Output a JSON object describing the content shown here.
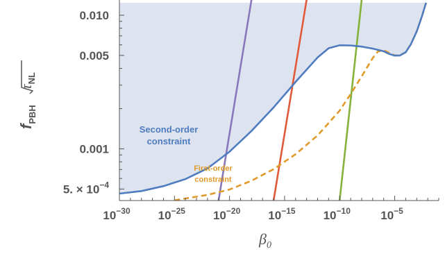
{
  "chart_data": {
    "type": "line",
    "xlabel": "β",
    "xlabel_sub": "0",
    "ylabel_main": "f",
    "ylabel_sub": "PBH",
    "ylabel_sqrt": "τ",
    "ylabel_sqrt_sub": "NL",
    "x_scale": "log",
    "y_scale": "log",
    "xlim": [
      1e-30,
      0.1
    ],
    "ylim": [
      0.00041,
      0.013
    ],
    "x_ticks": [
      {
        "value": 1e-30,
        "base": "10",
        "exp": "−30"
      },
      {
        "value": 1e-25,
        "base": "10",
        "exp": "−25"
      },
      {
        "value": 1e-20,
        "base": "10",
        "exp": "−20"
      },
      {
        "value": 1e-15,
        "base": "10",
        "exp": "−15"
      },
      {
        "value": 1e-10,
        "base": "10",
        "exp": "−10"
      },
      {
        "value": 1e-05,
        "base": "10",
        "exp": "−5"
      }
    ],
    "y_ticks": [
      {
        "value": 0.0005,
        "label": "5. × 10",
        "exp": "−4"
      },
      {
        "value": 0.001,
        "label": "0.001",
        "exp": ""
      },
      {
        "value": 0.005,
        "label": "0.005",
        "exp": ""
      },
      {
        "value": 0.01,
        "label": "0.010",
        "exp": ""
      }
    ],
    "excluded_region": {
      "upper": 0.0124,
      "color": "#dde4f0"
    },
    "series": [
      {
        "name": "Second-order constraint",
        "color": "#4f7cbf",
        "style": "solid",
        "points": [
          [
            1e-30,
            0.000462
          ],
          [
            1e-28,
            0.000483
          ],
          [
            1e-26,
            0.000526
          ],
          [
            1e-24,
            0.000594
          ],
          [
            1e-22,
            0.000714
          ],
          [
            1e-20,
            0.000952
          ],
          [
            1e-18,
            0.00136
          ],
          [
            1e-16,
            0.00204
          ],
          [
            1e-14,
            0.00317
          ],
          [
            1e-12,
            0.00483
          ],
          [
            1e-11,
            0.00566
          ],
          [
            1e-10,
            0.00596
          ],
          [
            1e-09,
            0.00594
          ],
          [
            1e-08,
            0.00582
          ],
          [
            1e-07,
            0.00563
          ],
          [
            1e-06,
            0.00537
          ],
          [
            3e-06,
            0.00514
          ],
          [
            1e-05,
            0.00499
          ],
          [
            3e-05,
            0.005
          ],
          [
            0.0001,
            0.00528
          ],
          [
            0.0003,
            0.00608
          ],
          [
            0.001,
            0.00757
          ],
          [
            0.003,
            0.00982
          ],
          [
            0.007,
            0.0124
          ]
        ]
      },
      {
        "name": "First-order constraint",
        "color": "#e09a2a",
        "style": "dashed",
        "points": [
          [
            1e-25,
            0.000412
          ],
          [
            1e-22,
            0.000452
          ],
          [
            1e-20,
            0.000496
          ],
          [
            1e-18,
            0.000577
          ],
          [
            1e-16,
            0.000704
          ],
          [
            1e-14,
            0.000911
          ],
          [
            1e-12,
            0.00126
          ],
          [
            1e-10,
            0.00193
          ],
          [
            1e-09,
            0.00257
          ],
          [
            1e-08,
            0.00349
          ],
          [
            1e-07,
            0.00477
          ],
          [
            3e-07,
            0.00536
          ],
          [
            1e-06,
            0.00546
          ],
          [
            3e-06,
            0.00524
          ],
          [
            1e-05,
            0.005
          ],
          [
            3e-05,
            0.00501
          ],
          [
            0.0001,
            0.00528
          ],
          [
            0.0003,
            0.00608
          ],
          [
            0.001,
            0.00757
          ],
          [
            0.003,
            0.00982
          ],
          [
            0.007,
            0.0124
          ]
        ]
      },
      {
        "name": "",
        "color": "#8877bb",
        "style": "solid",
        "points": [
          [
            1e-21,
            0.00041
          ],
          [
            1e-18,
            0.0131
          ]
        ]
      },
      {
        "name": "",
        "color": "#e05a3a",
        "style": "solid",
        "points": [
          [
            1e-16,
            0.00041
          ],
          [
            1e-13,
            0.0131
          ]
        ]
      },
      {
        "name": "",
        "color": "#86b23c",
        "style": "solid",
        "points": [
          [
            1e-10,
            0.00041
          ],
          [
            1e-08,
            0.0131
          ]
        ]
      }
    ],
    "annotations": {
      "second_line1": "Second-order",
      "second_line2": "constraint",
      "first_line1": "First-order",
      "first_line2": "constraint"
    },
    "grid": false,
    "legend": "none"
  }
}
